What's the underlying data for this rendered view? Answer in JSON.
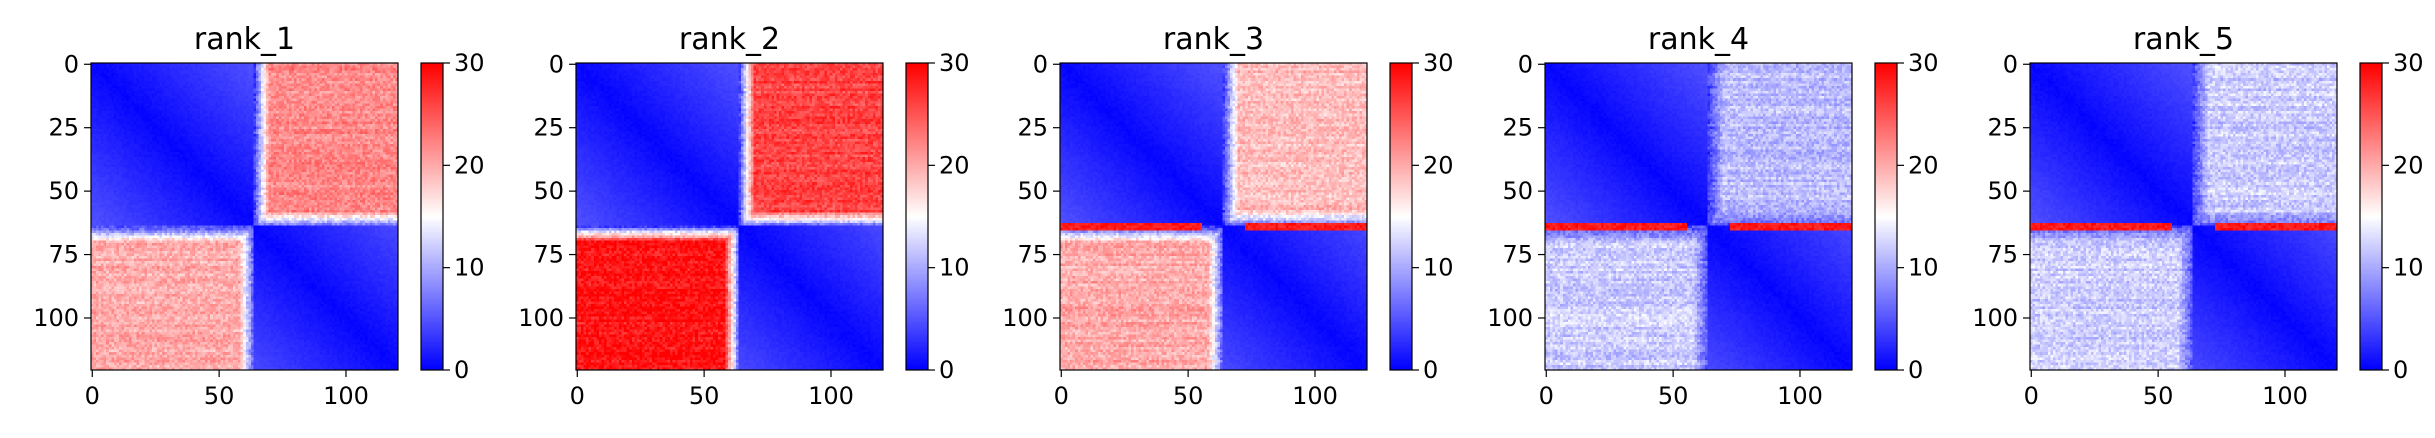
{
  "chart_data": [
    {
      "type": "heatmap",
      "title": "rank_1",
      "size": 121,
      "boundary": 64,
      "x_ticks": [
        0,
        50,
        100
      ],
      "y_ticks": [
        0,
        25,
        50,
        75,
        100
      ],
      "colorbar": {
        "range": [
          0,
          30
        ],
        "ticks": [
          0,
          10,
          20,
          30
        ],
        "colormap": "bwr"
      },
      "off_diagonal": {
        "top_right": 22,
        "bottom_left": 20
      },
      "red_row_band": null
    },
    {
      "type": "heatmap",
      "title": "rank_2",
      "size": 121,
      "boundary": 64,
      "x_ticks": [
        0,
        50,
        100
      ],
      "y_ticks": [
        0,
        25,
        50,
        75,
        100
      ],
      "colorbar": {
        "range": [
          0,
          30
        ],
        "ticks": [
          0,
          10,
          20,
          30
        ],
        "colormap": "bwr"
      },
      "off_diagonal": {
        "top_right": 26,
        "bottom_left": 29
      },
      "red_row_band": null
    },
    {
      "type": "heatmap",
      "title": "rank_3",
      "size": 121,
      "boundary": 64,
      "x_ticks": [
        0,
        50,
        100
      ],
      "y_ticks": [
        0,
        25,
        50,
        75,
        100
      ],
      "colorbar": {
        "range": [
          0,
          30
        ],
        "ticks": [
          0,
          10,
          20,
          30
        ],
        "colormap": "bwr"
      },
      "off_diagonal": {
        "top_right": 19,
        "bottom_left": 20
      },
      "red_row_band": 64
    },
    {
      "type": "heatmap",
      "title": "rank_4",
      "size": 121,
      "boundary": 64,
      "x_ticks": [
        0,
        50,
        100
      ],
      "y_ticks": [
        0,
        25,
        50,
        75,
        100
      ],
      "colorbar": {
        "range": [
          0,
          30
        ],
        "ticks": [
          0,
          10,
          20,
          30
        ],
        "colormap": "bwr"
      },
      "off_diagonal": {
        "top_right": 11,
        "bottom_left": 12
      },
      "red_row_band": 64
    },
    {
      "type": "heatmap",
      "title": "rank_5",
      "size": 121,
      "boundary": 64,
      "x_ticks": [
        0,
        50,
        100
      ],
      "y_ticks": [
        0,
        25,
        50,
        75,
        100
      ],
      "colorbar": {
        "range": [
          0,
          30
        ],
        "ticks": [
          0,
          10,
          20,
          30
        ],
        "colormap": "bwr"
      },
      "off_diagonal": {
        "top_right": 12,
        "bottom_left": 12
      },
      "red_row_band": 64
    }
  ]
}
